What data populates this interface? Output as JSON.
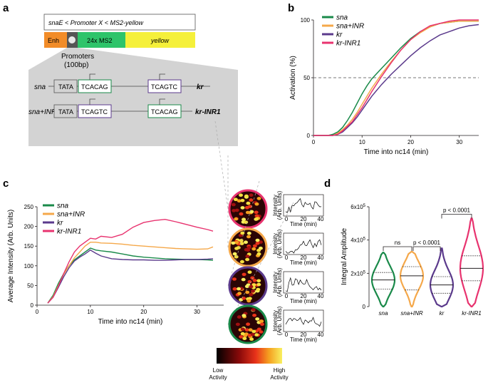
{
  "panels": {
    "a": {
      "label": "a",
      "construct_title": "snaE < Promoter X < MS2-yellow",
      "segments": {
        "enh": "Enh",
        "ms2": "24x MS2",
        "yellow": "yellow"
      },
      "promoters_title": "Promoters",
      "promoters_size": "(100bp)",
      "rows": [
        {
          "name": "sna",
          "tata": "TATA",
          "core": "TCACAG",
          "right_core": "TCAGTC",
          "right_name": "kr"
        },
        {
          "name": "sna+INR",
          "tata": "TATA",
          "core": "TCAGTC",
          "right_core": "TCACAG",
          "right_name": "kr-INR1"
        }
      ]
    },
    "b": {
      "label": "b"
    },
    "c": {
      "label": "c",
      "colorbar": {
        "low": "Low\nActivity",
        "high": "High\nActivity"
      }
    },
    "d": {
      "label": "d"
    }
  },
  "colors": {
    "sna": "#1a8a4a",
    "sna_inr": "#f5a84a",
    "kr": "#5b3a8c",
    "kr_inr1": "#e8336f",
    "enh": "#f28c28",
    "ms2": "#2ec46a",
    "yellow": "#f5f03a"
  },
  "chart_data": [
    {
      "id": "b",
      "type": "line",
      "xlabel": "Time into nc14 (min)",
      "ylabel": "Activation (%)",
      "xlim": [
        0,
        34
      ],
      "ylim": [
        0,
        100
      ],
      "xticks": [
        "0",
        "10",
        "20",
        "30"
      ],
      "yticks": [
        "0",
        "50",
        "100"
      ],
      "reference_line": 50,
      "legend": [
        "sna",
        "sna+INR",
        "kr",
        "kr-INR1"
      ],
      "series": [
        {
          "name": "sna",
          "x": [
            0,
            3,
            4,
            5,
            6,
            7,
            8,
            9,
            10,
            11,
            12,
            14,
            16,
            18,
            20,
            22,
            24,
            26,
            28,
            30,
            32,
            34
          ],
          "values": [
            0,
            0,
            1,
            3,
            7,
            13,
            20,
            28,
            36,
            43,
            49,
            58,
            67,
            76,
            84,
            90,
            94,
            97,
            98,
            99,
            99,
            99
          ]
        },
        {
          "name": "sna+INR",
          "x": [
            0,
            3,
            4,
            5,
            6,
            7,
            8,
            9,
            10,
            11,
            12,
            14,
            16,
            18,
            20,
            22,
            24,
            26,
            28,
            30,
            32,
            34
          ],
          "values": [
            0,
            0,
            0,
            2,
            5,
            9,
            14,
            20,
            27,
            34,
            41,
            53,
            64,
            74,
            83,
            89,
            94,
            97,
            98,
            99,
            99,
            99
          ]
        },
        {
          "name": "kr",
          "x": [
            0,
            3,
            4,
            5,
            6,
            7,
            8,
            9,
            10,
            11,
            12,
            14,
            16,
            18,
            20,
            22,
            24,
            26,
            28,
            30,
            32,
            34
          ],
          "values": [
            0,
            0,
            0,
            1,
            3,
            7,
            11,
            16,
            22,
            28,
            34,
            44,
            53,
            61,
            69,
            76,
            82,
            87,
            90,
            93,
            95,
            96
          ]
        },
        {
          "name": "kr-INR1",
          "x": [
            0,
            3,
            4,
            5,
            6,
            7,
            8,
            9,
            10,
            11,
            12,
            14,
            16,
            18,
            20,
            22,
            24,
            26,
            28,
            30,
            32,
            34
          ],
          "values": [
            0,
            0,
            0,
            1,
            4,
            8,
            12,
            18,
            24,
            31,
            38,
            51,
            63,
            74,
            83,
            90,
            95,
            97,
            99,
            100,
            100,
            100
          ]
        }
      ]
    },
    {
      "id": "c",
      "type": "line",
      "xlabel": "Time into nc14 (min)",
      "ylabel": "Average Intensity (Arb. Units)",
      "xlim": [
        0,
        35
      ],
      "ylim": [
        0,
        250
      ],
      "xticks": [
        "0",
        "10",
        "20",
        "30"
      ],
      "yticks": [
        "0",
        "50",
        "100",
        "150",
        "200",
        "250"
      ],
      "legend": [
        "sna",
        "sna+INR",
        "kr",
        "kr-INR1"
      ],
      "series": [
        {
          "name": "sna",
          "x": [
            2,
            3,
            4,
            5,
            6,
            7,
            8,
            9,
            10,
            11,
            12,
            14,
            16,
            18,
            20,
            22,
            24,
            26,
            28,
            30,
            32,
            33
          ],
          "values": [
            5,
            25,
            55,
            80,
            100,
            115,
            125,
            135,
            145,
            140,
            138,
            135,
            130,
            125,
            122,
            120,
            118,
            117,
            116,
            116,
            115,
            114
          ]
        },
        {
          "name": "sna+INR",
          "x": [
            2,
            3,
            4,
            5,
            6,
            7,
            8,
            9,
            10,
            11,
            12,
            14,
            16,
            18,
            20,
            22,
            24,
            26,
            28,
            30,
            32,
            33
          ],
          "values": [
            5,
            22,
            50,
            78,
            100,
            120,
            135,
            150,
            160,
            160,
            158,
            157,
            155,
            152,
            150,
            148,
            146,
            144,
            143,
            142,
            143,
            148
          ]
        },
        {
          "name": "kr",
          "x": [
            2,
            3,
            4,
            5,
            6,
            7,
            8,
            9,
            10,
            11,
            12,
            14,
            16,
            18,
            20,
            22,
            24,
            26,
            28,
            30,
            32,
            33
          ],
          "values": [
            5,
            20,
            45,
            72,
            95,
            112,
            122,
            130,
            140,
            132,
            125,
            118,
            116,
            115,
            115,
            114,
            114,
            115,
            116,
            116,
            117,
            118
          ]
        },
        {
          "name": "kr-INR1",
          "x": [
            2,
            3,
            4,
            5,
            6,
            7,
            8,
            9,
            10,
            11,
            12,
            14,
            16,
            18,
            20,
            22,
            24,
            26,
            28,
            30,
            32,
            33
          ],
          "values": [
            5,
            20,
            48,
            80,
            110,
            135,
            150,
            160,
            170,
            168,
            175,
            172,
            180,
            198,
            210,
            215,
            218,
            212,
            205,
            198,
            192,
            188
          ]
        }
      ],
      "insets": [
        {
          "color": "kr-INR1",
          "ylabel": "Intensity (Arb. Units)",
          "xlabel": "Time (min)",
          "xticks": [
            "0",
            "20",
            "40"
          ]
        },
        {
          "color": "sna+INR",
          "ylabel": "Intensity (Arb. Units)",
          "xlabel": "Time (min)",
          "xticks": [
            "0",
            "20",
            "40"
          ]
        },
        {
          "color": "kr",
          "ylabel": "Intensity (Arb. Units)",
          "xlabel": "Time (min)",
          "xticks": [
            "0",
            "20",
            "40"
          ]
        },
        {
          "color": "sna",
          "ylabel": "Intensity (Arb. Units)",
          "xlabel": "Time (min)",
          "xticks": [
            "0",
            "20",
            "40"
          ]
        }
      ]
    },
    {
      "id": "d",
      "type": "violin",
      "ylabel": "Integral Amplitude",
      "ylim": [
        0,
        600000
      ],
      "yticks": [
        "0",
        "2x10",
        "4x10",
        "6x10"
      ],
      "ytick_exp": "5",
      "categories": [
        "sna",
        "sna+INR",
        "kr",
        "kr-INR1"
      ],
      "medians": [
        160000,
        185000,
        130000,
        230000
      ],
      "q1": [
        105000,
        100000,
        80000,
        155000
      ],
      "q3": [
        205000,
        240000,
        180000,
        305000
      ],
      "max": [
        325000,
        330000,
        350000,
        530000
      ],
      "comparisons": [
        {
          "pair": [
            "sna",
            "sna+INR"
          ],
          "label": "ns"
        },
        {
          "pair": [
            "sna+INR",
            "kr"
          ],
          "label": "p < 0.0001"
        },
        {
          "pair": [
            "kr",
            "kr-INR1"
          ],
          "label": "p < 0.0001"
        }
      ]
    }
  ]
}
